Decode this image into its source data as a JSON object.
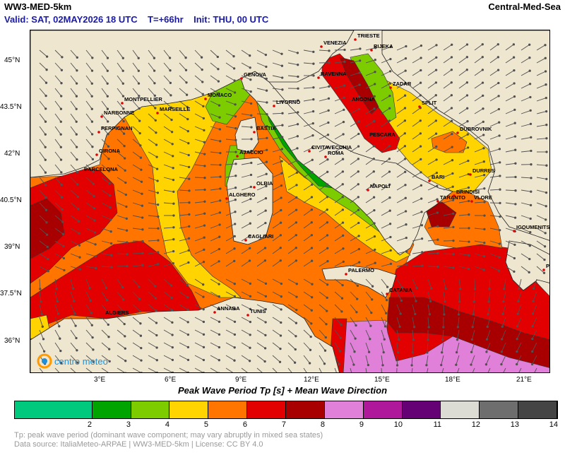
{
  "header": {
    "model": "WW3-MED-5km",
    "region": "Central-Med-Sea",
    "valid": "Valid: SAT, 02MAY2026 18 UTC",
    "step": "T=+66hr",
    "init": "Init: THU, 00 UTC"
  },
  "map": {
    "lat_labels": [
      "45°N",
      "43.5°N",
      "42°N",
      "40.5°N",
      "39°N",
      "37.5°N",
      "36°N"
    ],
    "lon_labels": [
      "3°E",
      "6°E",
      "9°E",
      "12°E",
      "15°E",
      "18°E",
      "21°E"
    ],
    "cities": [
      {
        "name": "TRIESTE"
      },
      {
        "name": "VENEZIA"
      },
      {
        "name": "RIJEKA"
      },
      {
        "name": "RAVENNA"
      },
      {
        "name": "ZADAR"
      },
      {
        "name": "GENOVA"
      },
      {
        "name": "ANCONA"
      },
      {
        "name": "SPLIT"
      },
      {
        "name": "MONTPELLIER"
      },
      {
        "name": "MONACO"
      },
      {
        "name": "LIVORNO"
      },
      {
        "name": "MARSEILLE"
      },
      {
        "name": "NARBONNE"
      },
      {
        "name": "PERPIGNAN"
      },
      {
        "name": "BASTIA"
      },
      {
        "name": "PESCARA"
      },
      {
        "name": "DUBROVNIK"
      },
      {
        "name": "GIRONA"
      },
      {
        "name": "AJACCIO"
      },
      {
        "name": "CIVITAVECCHIA"
      },
      {
        "name": "ROMA"
      },
      {
        "name": "BARCELONA"
      },
      {
        "name": "BARI"
      },
      {
        "name": "DURRES"
      },
      {
        "name": "OLBIA"
      },
      {
        "name": "NAPOLI"
      },
      {
        "name": "BRINDISI"
      },
      {
        "name": "ALGHERO"
      },
      {
        "name": "TARANTO"
      },
      {
        "name": "VLORE"
      },
      {
        "name": "IGOUMENITSA"
      },
      {
        "name": "CAGLIARI"
      },
      {
        "name": "PALERMO"
      },
      {
        "name": "PATRAS"
      },
      {
        "name": "CATANIA"
      },
      {
        "name": "ANNABA"
      },
      {
        "name": "TUNIS"
      },
      {
        "name": "ALGIERS"
      }
    ],
    "logo": "centro meteo"
  },
  "caption": "Peak Wave Period Tp [s]  +  Mean Wave Direction",
  "colorbar": {
    "bins": [
      {
        "from": 0,
        "to": 2,
        "color": "#00c97d"
      },
      {
        "from": 2,
        "to": 3,
        "color": "#00a400"
      },
      {
        "from": 3,
        "to": 4,
        "color": "#7dcc00"
      },
      {
        "from": 4,
        "to": 5,
        "color": "#ffd400"
      },
      {
        "from": 5,
        "to": 6,
        "color": "#ff7500"
      },
      {
        "from": 6,
        "to": 7,
        "color": "#e20000"
      },
      {
        "from": 7,
        "to": 8,
        "color": "#a80000"
      },
      {
        "from": 8,
        "to": 9,
        "color": "#e080d8"
      },
      {
        "from": 9,
        "to": 10,
        "color": "#b0189c"
      },
      {
        "from": 10,
        "to": 11,
        "color": "#650075"
      },
      {
        "from": 11,
        "to": 12,
        "color": "#dcdcd4"
      },
      {
        "from": 12,
        "to": 13,
        "color": "#6e6e6e"
      },
      {
        "from": 13,
        "to": 14,
        "color": "#454545"
      }
    ],
    "ticks": [
      "2",
      "3",
      "4",
      "5",
      "6",
      "7",
      "8",
      "9",
      "10",
      "11",
      "12",
      "13",
      "14"
    ]
  },
  "notes": {
    "line1": "Tp: peak wave period (dominant wave component; may vary abruptly in mixed sea states)",
    "line2": "Data source: ItaliaMeteo-ARPAE | WW3-MED-5km | License: CC BY 4.0"
  }
}
